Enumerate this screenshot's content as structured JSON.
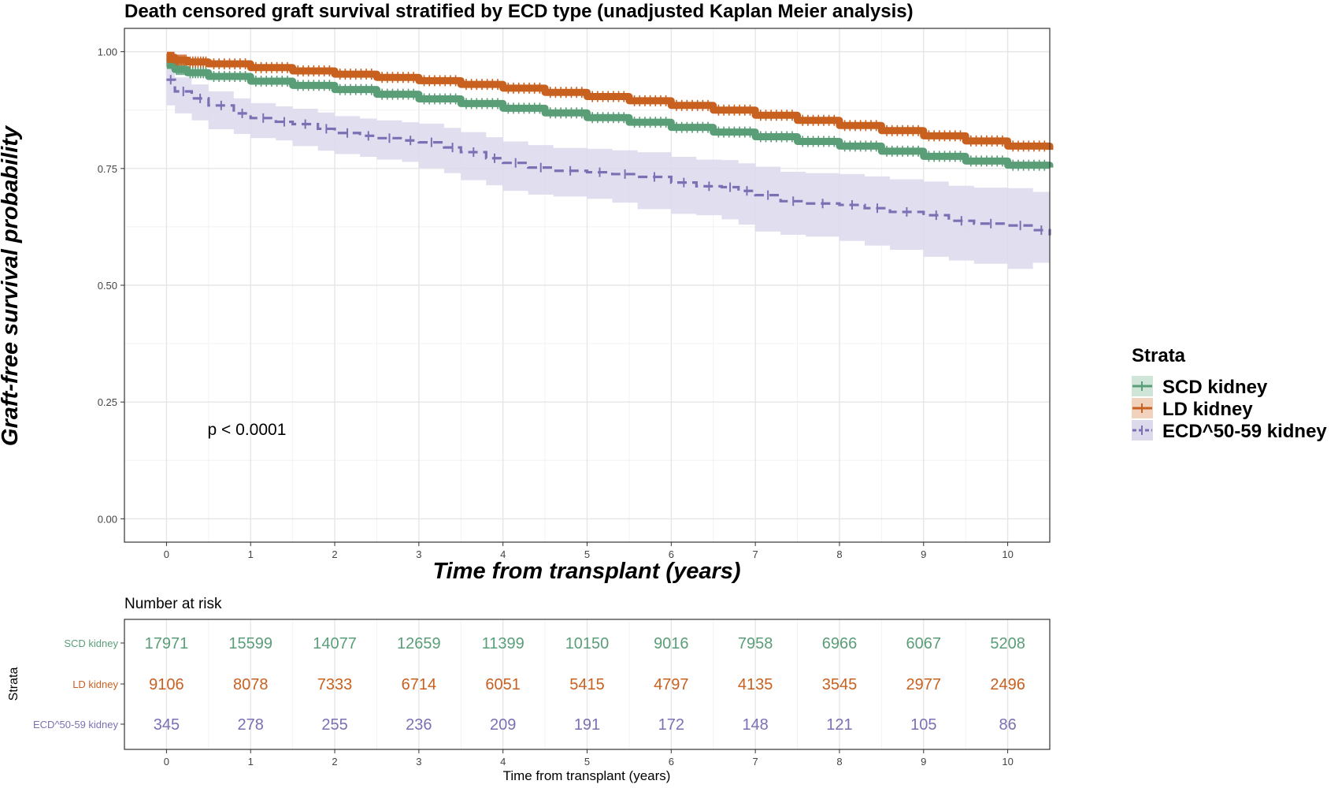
{
  "colors": {
    "scd": "#5a9e78",
    "ld": "#c8611f",
    "ecd": "#7b70b4",
    "ecd_band": "#dcd9ec",
    "grid_major": "#e6e6e6",
    "grid_minor": "#f2f2f2",
    "axis": "#333333",
    "text": "#000000"
  },
  "chart_data": [
    {
      "type": "line",
      "title": "Death censored graft survival stratified by ECD type (unadjusted Kaplan Meier analysis)",
      "xlabel": "Time from transplant (years)",
      "ylabel": "Graft-free survival probability",
      "xlim": [
        -0.5,
        10.5
      ],
      "ylim": [
        -0.05,
        1.05
      ],
      "x_ticks": [
        0,
        1,
        2,
        3,
        4,
        5,
        6,
        7,
        8,
        9,
        10
      ],
      "x_tick_labels": [
        "0",
        "1",
        "2",
        "3",
        "4",
        "5",
        "6",
        "7",
        "8",
        "9",
        "10"
      ],
      "y_ticks": [
        0,
        0.25,
        0.5,
        0.75,
        1.0
      ],
      "y_tick_labels": [
        "0.00",
        "0.25",
        "0.50",
        "0.75",
        "1.00"
      ],
      "grid": true,
      "annotation": "p < 0.0001",
      "annotation_pos": {
        "x": 0.9,
        "y": 0.2
      },
      "legend": {
        "title": "Strata",
        "position": "right",
        "entries": [
          "SCD kidney",
          "LD kidney",
          "ECD^50-59 kidney"
        ]
      },
      "series": [
        {
          "name": "SCD kidney",
          "color_key": "scd",
          "dashed": false,
          "x": [
            0,
            0.1,
            0.25,
            0.5,
            1,
            1.5,
            2,
            2.5,
            3,
            3.5,
            4,
            4.5,
            5,
            5.5,
            6,
            6.5,
            7,
            7.5,
            8,
            8.5,
            9,
            9.5,
            10,
            10.5
          ],
          "y": [
            0.975,
            0.962,
            0.955,
            0.947,
            0.937,
            0.928,
            0.919,
            0.909,
            0.899,
            0.889,
            0.879,
            0.869,
            0.859,
            0.849,
            0.838,
            0.828,
            0.818,
            0.808,
            0.798,
            0.787,
            0.776,
            0.766,
            0.757,
            0.752
          ]
        },
        {
          "name": "LD kidney",
          "color_key": "ld",
          "dashed": false,
          "x": [
            0,
            0.1,
            0.25,
            0.5,
            1,
            1.5,
            2,
            2.5,
            3,
            3.5,
            4,
            4.5,
            5,
            5.5,
            6,
            6.5,
            7,
            7.5,
            8,
            8.5,
            9,
            9.5,
            10,
            10.5
          ],
          "y": [
            0.988,
            0.982,
            0.978,
            0.974,
            0.966,
            0.959,
            0.952,
            0.945,
            0.938,
            0.93,
            0.922,
            0.913,
            0.904,
            0.895,
            0.885,
            0.875,
            0.864,
            0.853,
            0.842,
            0.831,
            0.82,
            0.809,
            0.798,
            0.79
          ]
        },
        {
          "name": "ECD^50-59 kidney",
          "color_key": "ecd",
          "dashed": true,
          "x": [
            0,
            0.1,
            0.3,
            0.5,
            0.8,
            1,
            1.3,
            1.5,
            1.8,
            2,
            2.3,
            2.5,
            2.8,
            3,
            3.3,
            3.5,
            3.8,
            4,
            4.3,
            4.6,
            5,
            5.3,
            5.6,
            6,
            6.3,
            6.6,
            6.8,
            7,
            7.3,
            7.6,
            8,
            8.3,
            8.6,
            9,
            9.3,
            9.6,
            10,
            10.3,
            10.5
          ],
          "y": [
            0.94,
            0.915,
            0.9,
            0.885,
            0.868,
            0.858,
            0.85,
            0.845,
            0.835,
            0.826,
            0.82,
            0.815,
            0.81,
            0.806,
            0.795,
            0.785,
            0.772,
            0.762,
            0.752,
            0.745,
            0.742,
            0.738,
            0.732,
            0.72,
            0.712,
            0.71,
            0.702,
            0.693,
            0.68,
            0.675,
            0.672,
            0.665,
            0.657,
            0.65,
            0.638,
            0.632,
            0.628,
            0.618,
            0.607
          ],
          "ci_upper": [
            0.97,
            0.945,
            0.93,
            0.915,
            0.9,
            0.89,
            0.883,
            0.878,
            0.87,
            0.862,
            0.857,
            0.853,
            0.849,
            0.846,
            0.837,
            0.828,
            0.817,
            0.808,
            0.8,
            0.794,
            0.792,
            0.789,
            0.785,
            0.775,
            0.769,
            0.768,
            0.761,
            0.754,
            0.743,
            0.74,
            0.738,
            0.733,
            0.727,
            0.722,
            0.713,
            0.709,
            0.708,
            0.7,
            0.67
          ],
          "ci_lower": [
            0.91,
            0.885,
            0.868,
            0.853,
            0.834,
            0.824,
            0.815,
            0.81,
            0.798,
            0.788,
            0.781,
            0.775,
            0.769,
            0.764,
            0.751,
            0.74,
            0.725,
            0.714,
            0.702,
            0.694,
            0.69,
            0.685,
            0.677,
            0.663,
            0.653,
            0.65,
            0.641,
            0.63,
            0.615,
            0.608,
            0.604,
            0.595,
            0.585,
            0.576,
            0.561,
            0.553,
            0.546,
            0.535,
            0.548
          ]
        }
      ]
    },
    {
      "type": "table",
      "title": "Number at risk",
      "row_title": "Strata",
      "xlabel": "Time from transplant (years)",
      "x_ticks": [
        0,
        1,
        2,
        3,
        4,
        5,
        6,
        7,
        8,
        9,
        10
      ],
      "x_tick_labels": [
        "0",
        "1",
        "2",
        "3",
        "4",
        "5",
        "6",
        "7",
        "8",
        "9",
        "10"
      ],
      "rows": [
        {
          "label": "SCD kidney",
          "color_key": "scd",
          "values": [
            "17971",
            "15599",
            "14077",
            "12659",
            "11399",
            "10150",
            "9016",
            "7958",
            "6966",
            "6067",
            "5208"
          ]
        },
        {
          "label": "LD kidney",
          "color_key": "ld",
          "values": [
            "9106",
            "8078",
            "7333",
            "6714",
            "6051",
            "5415",
            "4797",
            "4135",
            "3545",
            "2977",
            "2496"
          ]
        },
        {
          "label": "ECD^50-59 kidney",
          "color_key": "ecd",
          "values": [
            "345",
            "278",
            "255",
            "236",
            "209",
            "191",
            "172",
            "148",
            "121",
            "105",
            "86"
          ]
        }
      ]
    }
  ]
}
